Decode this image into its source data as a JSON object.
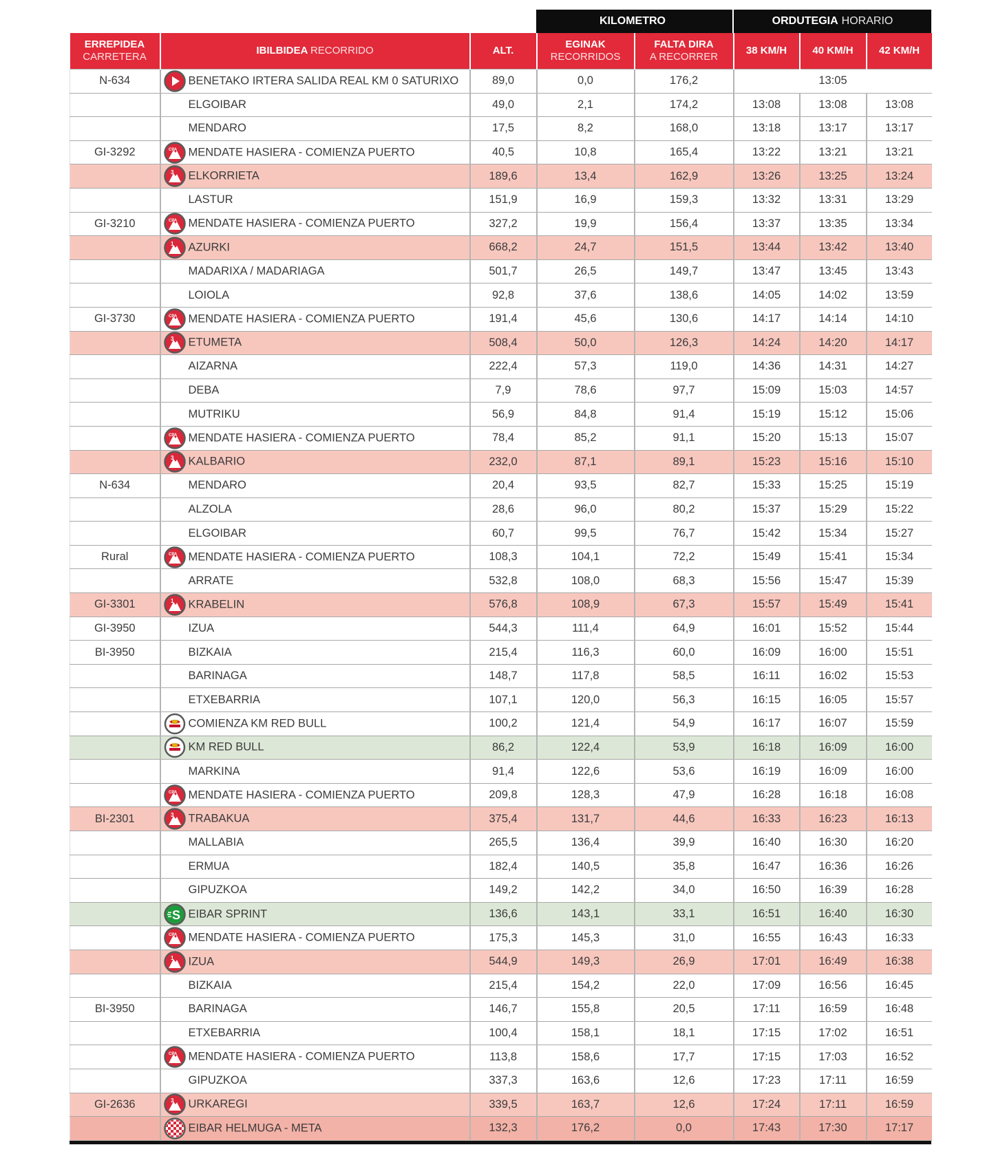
{
  "colors": {
    "header_red": "#e22a3a",
    "band_black": "#0d0d0d",
    "climb_row": "#f7c7be",
    "bonus_row": "#dde7d7",
    "finish_row": "#f3b2a7",
    "icon_red": "#d8283a",
    "sprint_green": "#1e9b3c"
  },
  "bands": {
    "kilometro": "KILOMETRO",
    "ordutegia_bold": "ORDUTEGIA",
    "ordutegia_light": "HORARIO"
  },
  "headers": {
    "road_bold": "ERREPIDEA",
    "road_light": "CARRETERA",
    "route_bold": "IBILBIDEA",
    "route_light": "RECORRIDO",
    "alt": "ALT.",
    "done_bold": "EGINAK",
    "done_light": "RECORRIDOS",
    "left_bold": "FALTA DIRA",
    "left_light": "A RECORRER",
    "s38": "38 KM/H",
    "s40": "40 KM/H",
    "s42": "42 KM/H"
  },
  "icon_types": {
    "start": "play-start-icon",
    "cpa": "climb-start-cpa-icon",
    "cat3": "climb-category-3-icon",
    "cat1": "climb-category-1-icon",
    "redbull": "red-bull-km-icon",
    "sprint": "sprint-icon",
    "finish": "finish-checkered-icon"
  },
  "rows": [
    {
      "road": "N-634",
      "icon": "start",
      "name": "BENETAKO IRTERA SALIDA REAL KM 0 SATURIXO",
      "alt": "89,0",
      "done": "0,0",
      "left": "176,2",
      "time_all": "13:05"
    },
    {
      "road": "",
      "icon": "",
      "name": "ELGOIBAR",
      "alt": "49,0",
      "done": "2,1",
      "left": "174,2",
      "t38": "13:08",
      "t40": "13:08",
      "t42": "13:08"
    },
    {
      "road": "",
      "icon": "",
      "name": "MENDARO",
      "alt": "17,5",
      "done": "8,2",
      "left": "168,0",
      "t38": "13:18",
      "t40": "13:17",
      "t42": "13:17"
    },
    {
      "road": "GI-3292",
      "icon": "cpa",
      "name": "MENDATE HASIERA - COMIENZA PUERTO",
      "alt": "40,5",
      "done": "10,8",
      "left": "165,4",
      "t38": "13:22",
      "t40": "13:21",
      "t42": "13:21"
    },
    {
      "road": "",
      "icon": "cat3",
      "name": "ELKORRIETA",
      "alt": "189,6",
      "done": "13,4",
      "left": "162,9",
      "t38": "13:26",
      "t40": "13:25",
      "t42": "13:24",
      "hl": "pink"
    },
    {
      "road": "",
      "icon": "",
      "name": "LASTUR",
      "alt": "151,9",
      "done": "16,9",
      "left": "159,3",
      "t38": "13:32",
      "t40": "13:31",
      "t42": "13:29"
    },
    {
      "road": "GI-3210",
      "icon": "cpa",
      "name": "MENDATE HASIERA - COMIENZA PUERTO",
      "alt": "327,2",
      "done": "19,9",
      "left": "156,4",
      "t38": "13:37",
      "t40": "13:35",
      "t42": "13:34"
    },
    {
      "road": "",
      "icon": "cat1",
      "name": "AZURKI",
      "alt": "668,2",
      "done": "24,7",
      "left": "151,5",
      "t38": "13:44",
      "t40": "13:42",
      "t42": "13:40",
      "hl": "pink"
    },
    {
      "road": "",
      "icon": "",
      "name": "MADARIXA / MADARIAGA",
      "alt": "501,7",
      "done": "26,5",
      "left": "149,7",
      "t38": "13:47",
      "t40": "13:45",
      "t42": "13:43"
    },
    {
      "road": "",
      "icon": "",
      "name": "LOIOLA",
      "alt": "92,8",
      "done": "37,6",
      "left": "138,6",
      "t38": "14:05",
      "t40": "14:02",
      "t42": "13:59"
    },
    {
      "road": "GI-3730",
      "icon": "cpa",
      "name": "MENDATE HASIERA - COMIENZA PUERTO",
      "alt": "191,4",
      "done": "45,6",
      "left": "130,6",
      "t38": "14:17",
      "t40": "14:14",
      "t42": "14:10"
    },
    {
      "road": "",
      "icon": "cat3",
      "name": "ETUMETA",
      "alt": "508,4",
      "done": "50,0",
      "left": "126,3",
      "t38": "14:24",
      "t40": "14:20",
      "t42": "14:17",
      "hl": "pink"
    },
    {
      "road": "",
      "icon": "",
      "name": "AIZARNA",
      "alt": "222,4",
      "done": "57,3",
      "left": "119,0",
      "t38": "14:36",
      "t40": "14:31",
      "t42": "14:27"
    },
    {
      "road": "",
      "icon": "",
      "name": "DEBA",
      "alt": "7,9",
      "done": "78,6",
      "left": "97,7",
      "t38": "15:09",
      "t40": "15:03",
      "t42": "14:57"
    },
    {
      "road": "",
      "icon": "",
      "name": "MUTRIKU",
      "alt": "56,9",
      "done": "84,8",
      "left": "91,4",
      "t38": "15:19",
      "t40": "15:12",
      "t42": "15:06"
    },
    {
      "road": "",
      "icon": "cpa",
      "name": "MENDATE HASIERA - COMIENZA PUERTO",
      "alt": "78,4",
      "done": "85,2",
      "left": "91,1",
      "t38": "15:20",
      "t40": "15:13",
      "t42": "15:07"
    },
    {
      "road": "",
      "icon": "cat3",
      "name": "KALBARIO",
      "alt": "232,0",
      "done": "87,1",
      "left": "89,1",
      "t38": "15:23",
      "t40": "15:16",
      "t42": "15:10",
      "hl": "pink"
    },
    {
      "road": "N-634",
      "icon": "",
      "name": "MENDARO",
      "alt": "20,4",
      "done": "93,5",
      "left": "82,7",
      "t38": "15:33",
      "t40": "15:25",
      "t42": "15:19"
    },
    {
      "road": "",
      "icon": "",
      "name": "ALZOLA",
      "alt": "28,6",
      "done": "96,0",
      "left": "80,2",
      "t38": "15:37",
      "t40": "15:29",
      "t42": "15:22"
    },
    {
      "road": "",
      "icon": "",
      "name": "ELGOIBAR",
      "alt": "60,7",
      "done": "99,5",
      "left": "76,7",
      "t38": "15:42",
      "t40": "15:34",
      "t42": "15:27"
    },
    {
      "road": "Rural",
      "icon": "cpa",
      "name": "MENDATE HASIERA - COMIENZA PUERTO",
      "alt": "108,3",
      "done": "104,1",
      "left": "72,2",
      "t38": "15:49",
      "t40": "15:41",
      "t42": "15:34"
    },
    {
      "road": "",
      "icon": "",
      "name": "ARRATE",
      "alt": "532,8",
      "done": "108,0",
      "left": "68,3",
      "t38": "15:56",
      "t40": "15:47",
      "t42": "15:39"
    },
    {
      "road": "GI-3301",
      "icon": "cat1",
      "name": "KRABELIN",
      "alt": "576,8",
      "done": "108,9",
      "left": "67,3",
      "t38": "15:57",
      "t40": "15:49",
      "t42": "15:41",
      "hl": "pink"
    },
    {
      "road": "GI-3950",
      "icon": "",
      "name": "IZUA",
      "alt": "544,3",
      "done": "111,4",
      "left": "64,9",
      "t38": "16:01",
      "t40": "15:52",
      "t42": "15:44"
    },
    {
      "road": "BI-3950",
      "icon": "",
      "name": "BIZKAIA",
      "alt": "215,4",
      "done": "116,3",
      "left": "60,0",
      "t38": "16:09",
      "t40": "16:00",
      "t42": "15:51"
    },
    {
      "road": "",
      "icon": "",
      "name": "BARINAGA",
      "alt": "148,7",
      "done": "117,8",
      "left": "58,5",
      "t38": "16:11",
      "t40": "16:02",
      "t42": "15:53"
    },
    {
      "road": "",
      "icon": "",
      "name": "ETXEBARRIA",
      "alt": "107,1",
      "done": "120,0",
      "left": "56,3",
      "t38": "16:15",
      "t40": "16:05",
      "t42": "15:57"
    },
    {
      "road": "",
      "icon": "redbull",
      "name": "COMIENZA KM RED BULL",
      "alt": "100,2",
      "done": "121,4",
      "left": "54,9",
      "t38": "16:17",
      "t40": "16:07",
      "t42": "15:59"
    },
    {
      "road": "",
      "icon": "redbull",
      "name": "KM RED BULL",
      "alt": "86,2",
      "done": "122,4",
      "left": "53,9",
      "t38": "16:18",
      "t40": "16:09",
      "t42": "16:00",
      "hl": "green"
    },
    {
      "road": "",
      "icon": "",
      "name": "MARKINA",
      "alt": "91,4",
      "done": "122,6",
      "left": "53,6",
      "t38": "16:19",
      "t40": "16:09",
      "t42": "16:00"
    },
    {
      "road": "",
      "icon": "cpa",
      "name": "MENDATE HASIERA - COMIENZA PUERTO",
      "alt": "209,8",
      "done": "128,3",
      "left": "47,9",
      "t38": "16:28",
      "t40": "16:18",
      "t42": "16:08"
    },
    {
      "road": "BI-2301",
      "icon": "cat3",
      "name": "TRABAKUA",
      "alt": "375,4",
      "done": "131,7",
      "left": "44,6",
      "t38": "16:33",
      "t40": "16:23",
      "t42": "16:13",
      "hl": "pink"
    },
    {
      "road": "",
      "icon": "",
      "name": "MALLABIA",
      "alt": "265,5",
      "done": "136,4",
      "left": "39,9",
      "t38": "16:40",
      "t40": "16:30",
      "t42": "16:20"
    },
    {
      "road": "",
      "icon": "",
      "name": "ERMUA",
      "alt": "182,4",
      "done": "140,5",
      "left": "35,8",
      "t38": "16:47",
      "t40": "16:36",
      "t42": "16:26"
    },
    {
      "road": "",
      "icon": "",
      "name": "GIPUZKOA",
      "alt": "149,2",
      "done": "142,2",
      "left": "34,0",
      "t38": "16:50",
      "t40": "16:39",
      "t42": "16:28"
    },
    {
      "road": "",
      "icon": "sprint",
      "name": "EIBAR SPRINT",
      "alt": "136,6",
      "done": "143,1",
      "left": "33,1",
      "t38": "16:51",
      "t40": "16:40",
      "t42": "16:30",
      "hl": "green"
    },
    {
      "road": "",
      "icon": "cpa",
      "name": "MENDATE HASIERA - COMIENZA PUERTO",
      "alt": "175,3",
      "done": "145,3",
      "left": "31,0",
      "t38": "16:55",
      "t40": "16:43",
      "t42": "16:33"
    },
    {
      "road": "",
      "icon": "cat1",
      "name": "IZUA",
      "alt": "544,9",
      "done": "149,3",
      "left": "26,9",
      "t38": "17:01",
      "t40": "16:49",
      "t42": "16:38",
      "hl": "pink"
    },
    {
      "road": "",
      "icon": "",
      "name": "BIZKAIA",
      "alt": "215,4",
      "done": "154,2",
      "left": "22,0",
      "t38": "17:09",
      "t40": "16:56",
      "t42": "16:45"
    },
    {
      "road": "BI-3950",
      "icon": "",
      "name": "BARINAGA",
      "alt": "146,7",
      "done": "155,8",
      "left": "20,5",
      "t38": "17:11",
      "t40": "16:59",
      "t42": "16:48"
    },
    {
      "road": "",
      "icon": "",
      "name": "ETXEBARRIA",
      "alt": "100,4",
      "done": "158,1",
      "left": "18,1",
      "t38": "17:15",
      "t40": "17:02",
      "t42": "16:51"
    },
    {
      "road": "",
      "icon": "cpa",
      "name": "MENDATE HASIERA - COMIENZA PUERTO",
      "alt": "113,8",
      "done": "158,6",
      "left": "17,7",
      "t38": "17:15",
      "t40": "17:03",
      "t42": "16:52"
    },
    {
      "road": "",
      "icon": "",
      "name": "GIPUZKOA",
      "alt": "337,3",
      "done": "163,6",
      "left": "12,6",
      "t38": "17:23",
      "t40": "17:11",
      "t42": "16:59"
    },
    {
      "road": "GI-2636",
      "icon": "cat3",
      "name": "URKAREGI",
      "alt": "339,5",
      "done": "163,7",
      "left": "12,6",
      "t38": "17:24",
      "t40": "17:11",
      "t42": "16:59",
      "hl": "pink"
    },
    {
      "road": "",
      "icon": "finish",
      "name": "EIBAR HELMUGA - META",
      "alt": "132,3",
      "done": "176,2",
      "left": "0,0",
      "t38": "17:43",
      "t40": "17:30",
      "t42": "17:17",
      "hl": "finish"
    }
  ]
}
